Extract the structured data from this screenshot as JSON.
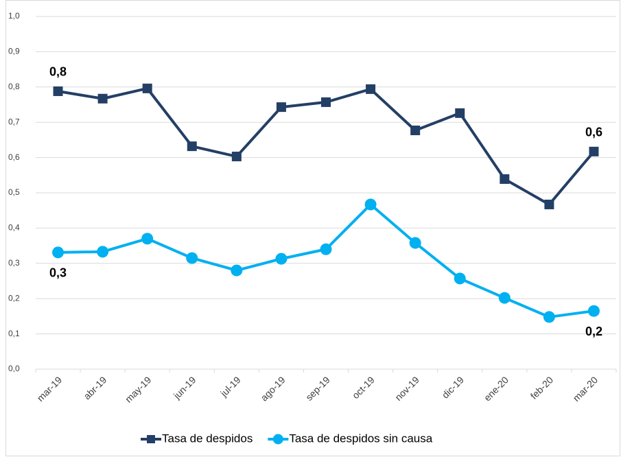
{
  "chart_data": {
    "type": "line",
    "categories": [
      "mar-19",
      "abr-19",
      "may-19",
      "jun-19",
      "jul-19",
      "ago-19",
      "sep-19",
      "oct-19",
      "nov-19",
      "dic-19",
      "ene-20",
      "feb-20",
      "mar-20"
    ],
    "series": [
      {
        "name": "Tasa de despidos",
        "color": "#243f66",
        "marker": "square",
        "values": [
          0.788,
          0.767,
          0.796,
          0.632,
          0.603,
          0.743,
          0.757,
          0.794,
          0.677,
          0.726,
          0.539,
          0.467,
          0.617
        ],
        "value_labels": [
          "0,8",
          null,
          null,
          null,
          null,
          null,
          null,
          null,
          null,
          null,
          null,
          null,
          "0,6"
        ]
      },
      {
        "name": "Tasa de despidos sin causa",
        "color": "#00b0f0",
        "marker": "circle",
        "values": [
          0.331,
          0.333,
          0.37,
          0.315,
          0.28,
          0.313,
          0.34,
          0.467,
          0.358,
          0.257,
          0.202,
          0.148,
          0.165
        ],
        "value_labels": [
          "0,3",
          null,
          null,
          null,
          null,
          null,
          null,
          null,
          null,
          null,
          null,
          null,
          "0,2"
        ]
      }
    ],
    "ylim": [
      0,
      1
    ],
    "yticks": [
      {
        "value": 0,
        "label": "0,0"
      },
      {
        "value": 0.1,
        "label": "0,1"
      },
      {
        "value": 0.2,
        "label": "0,2"
      },
      {
        "value": 0.3,
        "label": "0,3"
      },
      {
        "value": 0.4,
        "label": "0,4"
      },
      {
        "value": 0.5,
        "label": "0,5"
      },
      {
        "value": 0.6,
        "label": "0,6"
      },
      {
        "value": 0.7,
        "label": "0,7"
      },
      {
        "value": 0.8,
        "label": "0,8"
      },
      {
        "value": 0.9,
        "label": "0,9"
      },
      {
        "value": 1,
        "label": "1,0"
      }
    ],
    "grid": true,
    "legend": "bottom"
  }
}
